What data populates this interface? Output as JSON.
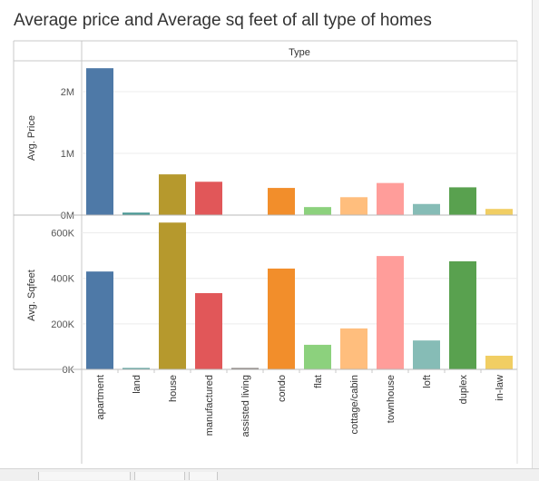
{
  "title": "Average price and Average sq feet of all type of homes",
  "column_header": "Type",
  "colors": {
    "apartment": "#4e79a7",
    "land": "#499894",
    "house": "#b6992d",
    "manufactured": "#e15759",
    "assisted living": "#79706e",
    "condo": "#f28e2b",
    "flat": "#8cd17d",
    "cottage/cabin": "#ffbe7d",
    "townhouse": "#ff9d9a",
    "loft": "#86bcb6",
    "duplex": "#59a14f",
    "in-law": "#f1ce63"
  },
  "chart_data": [
    {
      "type": "bar",
      "categories": [
        "apartment",
        "land",
        "house",
        "manufactured",
        "assisted living",
        "condo",
        "flat",
        "cottage/cabin",
        "townhouse",
        "loft",
        "duplex",
        "in-law"
      ],
      "values": [
        2380000,
        40000,
        660000,
        540000,
        0,
        440000,
        130000,
        290000,
        520000,
        180000,
        450000,
        100000
      ],
      "ylabel": "Avg. Price",
      "ylim": [
        0,
        2500000
      ],
      "yticks": [
        0,
        1000000,
        2000000
      ],
      "ytick_labels": [
        "0M",
        "1M",
        "2M"
      ],
      "grid": true
    },
    {
      "type": "bar",
      "categories": [
        "apartment",
        "land",
        "house",
        "manufactured",
        "assisted living",
        "condo",
        "flat",
        "cottage/cabin",
        "townhouse",
        "loft",
        "duplex",
        "in-law"
      ],
      "values": [
        430000,
        4000,
        645000,
        335000,
        3000,
        443000,
        108000,
        180000,
        498000,
        127000,
        475000,
        60000
      ],
      "ylabel": "Avg. Sqfeet",
      "ylim": [
        0,
        650000
      ],
      "yticks": [
        0,
        200000,
        400000,
        600000
      ],
      "ytick_labels": [
        "0K",
        "200K",
        "400K",
        "600K"
      ],
      "grid": true
    }
  ]
}
